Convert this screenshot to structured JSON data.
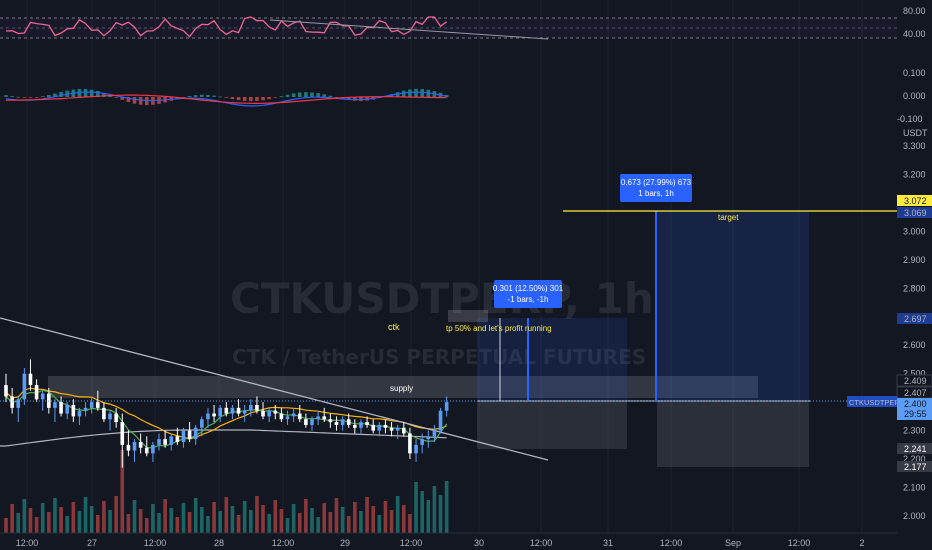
{
  "symbol": {
    "ticker": "CTKUSDTPERP",
    "watermark_main": "CTKUSDTPERP, 1h",
    "watermark_sub": "CTK / TetherUS PERPETUAL FUTURES"
  },
  "rsi_pane": {
    "scale_labels": [
      "80.00",
      "40.00"
    ],
    "levels": [
      70,
      50,
      30
    ]
  },
  "macd_pane": {
    "scale_labels": [
      "0.100",
      "0.000",
      "-0.100"
    ]
  },
  "price_pane": {
    "currency": "USDT",
    "scale_labels": [
      "3.300",
      "3.200",
      "3.000",
      "2.900",
      "2.800",
      "2.600",
      "2.500",
      "2.300",
      "2.200",
      "2.100",
      "2.000"
    ],
    "tags": {
      "target_top": "3.072",
      "target_bottom": "3.069",
      "level_mid": "2.697",
      "level_a": "2.409",
      "level_b": "2.407",
      "last_price": "2.400",
      "countdown": "29:55",
      "low_a": "2.241",
      "low_b": "2.177"
    },
    "last_price_label": "CTKUSDTPERP"
  },
  "annotations": {
    "ctk_label": "ctk",
    "tp_note": "tp 50% and let's profit running",
    "supply_label": "supply",
    "target_label": "target",
    "measure1_line1": "0.301 (12.50%) 301",
    "measure1_line2": "-1 bars, -1h",
    "measure2_line1": "0.673 (27.99%) 673",
    "measure2_line2": "1 bars, 1h"
  },
  "time_axis": {
    "labels": [
      "12:00",
      "27",
      "12:00",
      "28",
      "12:00",
      "29",
      "12:00",
      "30",
      "12:00",
      "31",
      "12:00",
      "Sep",
      "12:00",
      "2"
    ]
  },
  "colors": {
    "background": "#131722",
    "bull": "#5b9cf6",
    "bear": "#ffffff",
    "rsi": "#f06292",
    "macd_line": "#2962ff",
    "signal_line": "#f23645",
    "ema_fast": "#4caf50",
    "ema_slow": "#ffb300",
    "sma_long": "#b2b5be",
    "target": "#ffeb3b",
    "vol_bull": "#26a69a",
    "vol_bear": "#ef5350"
  },
  "chart_data": {
    "type": "candlestick",
    "timeframe": "1h",
    "y_range": [
      1.98,
      3.35
    ],
    "candles_ohlc": [
      [
        2.46,
        2.5,
        2.4,
        2.42
      ],
      [
        2.42,
        2.45,
        2.36,
        2.38
      ],
      [
        2.38,
        2.42,
        2.33,
        2.41
      ],
      [
        2.41,
        2.52,
        2.39,
        2.5
      ],
      [
        2.5,
        2.55,
        2.44,
        2.46
      ],
      [
        2.46,
        2.48,
        2.4,
        2.41
      ],
      [
        2.41,
        2.44,
        2.37,
        2.43
      ],
      [
        2.43,
        2.45,
        2.36,
        2.38
      ],
      [
        2.38,
        2.41,
        2.33,
        2.4
      ],
      [
        2.4,
        2.42,
        2.35,
        2.36
      ],
      [
        2.36,
        2.4,
        2.34,
        2.39
      ],
      [
        2.39,
        2.41,
        2.33,
        2.35
      ],
      [
        2.35,
        2.38,
        2.32,
        2.37
      ],
      [
        2.37,
        2.4,
        2.35,
        2.38
      ],
      [
        2.38,
        2.42,
        2.36,
        2.4
      ],
      [
        2.4,
        2.44,
        2.37,
        2.38
      ],
      [
        2.38,
        2.4,
        2.33,
        2.34
      ],
      [
        2.34,
        2.37,
        2.3,
        2.36
      ],
      [
        2.36,
        2.38,
        2.31,
        2.33
      ],
      [
        2.33,
        2.36,
        2.17,
        2.25
      ],
      [
        2.25,
        2.3,
        2.21,
        2.23
      ],
      [
        2.23,
        2.27,
        2.19,
        2.26
      ],
      [
        2.26,
        2.29,
        2.22,
        2.24
      ],
      [
        2.24,
        2.28,
        2.21,
        2.22
      ],
      [
        2.22,
        2.26,
        2.19,
        2.25
      ],
      [
        2.25,
        2.29,
        2.23,
        2.27
      ],
      [
        2.27,
        2.3,
        2.24,
        2.25
      ],
      [
        2.25,
        2.29,
        2.23,
        2.28
      ],
      [
        2.28,
        2.31,
        2.25,
        2.26
      ],
      [
        2.26,
        2.31,
        2.24,
        2.3
      ],
      [
        2.3,
        2.33,
        2.26,
        2.27
      ],
      [
        2.27,
        2.32,
        2.25,
        2.31
      ],
      [
        2.31,
        2.35,
        2.28,
        2.34
      ],
      [
        2.34,
        2.38,
        2.31,
        2.36
      ],
      [
        2.36,
        2.39,
        2.33,
        2.35
      ],
      [
        2.35,
        2.39,
        2.33,
        2.38
      ],
      [
        2.38,
        2.4,
        2.35,
        2.36
      ],
      [
        2.36,
        2.39,
        2.34,
        2.38
      ],
      [
        2.38,
        2.41,
        2.35,
        2.36
      ],
      [
        2.36,
        2.39,
        2.33,
        2.37
      ],
      [
        2.37,
        2.41,
        2.35,
        2.39
      ],
      [
        2.39,
        2.42,
        2.36,
        2.37
      ],
      [
        2.37,
        2.4,
        2.34,
        2.35
      ],
      [
        2.35,
        2.38,
        2.33,
        2.37
      ],
      [
        2.37,
        2.39,
        2.34,
        2.36
      ],
      [
        2.36,
        2.38,
        2.33,
        2.34
      ],
      [
        2.34,
        2.37,
        2.32,
        2.35
      ],
      [
        2.35,
        2.38,
        2.33,
        2.36
      ],
      [
        2.36,
        2.39,
        2.33,
        2.34
      ],
      [
        2.34,
        2.36,
        2.31,
        2.32
      ],
      [
        2.32,
        2.35,
        2.3,
        2.34
      ],
      [
        2.34,
        2.37,
        2.32,
        2.35
      ],
      [
        2.35,
        2.38,
        2.33,
        2.34
      ],
      [
        2.34,
        2.36,
        2.31,
        2.33
      ],
      [
        2.33,
        2.35,
        2.3,
        2.32
      ],
      [
        2.32,
        2.35,
        2.3,
        2.34
      ],
      [
        2.34,
        2.36,
        2.31,
        2.32
      ],
      [
        2.32,
        2.34,
        2.29,
        2.31
      ],
      [
        2.31,
        2.34,
        2.29,
        2.33
      ],
      [
        2.33,
        2.35,
        2.31,
        2.32
      ],
      [
        2.32,
        2.34,
        2.29,
        2.3
      ],
      [
        2.3,
        2.33,
        2.28,
        2.32
      ],
      [
        2.32,
        2.34,
        2.29,
        2.31
      ],
      [
        2.31,
        2.33,
        2.28,
        2.3
      ],
      [
        2.3,
        2.32,
        2.27,
        2.31
      ],
      [
        2.31,
        2.33,
        2.28,
        2.29
      ],
      [
        2.29,
        2.31,
        2.2,
        2.22
      ],
      [
        2.22,
        2.27,
        2.19,
        2.25
      ],
      [
        2.25,
        2.29,
        2.22,
        2.27
      ],
      [
        2.27,
        2.3,
        2.24,
        2.28
      ],
      [
        2.28,
        2.32,
        2.26,
        2.3
      ],
      [
        2.3,
        2.38,
        2.29,
        2.37
      ],
      [
        2.37,
        2.42,
        2.35,
        2.4
      ]
    ]
  }
}
